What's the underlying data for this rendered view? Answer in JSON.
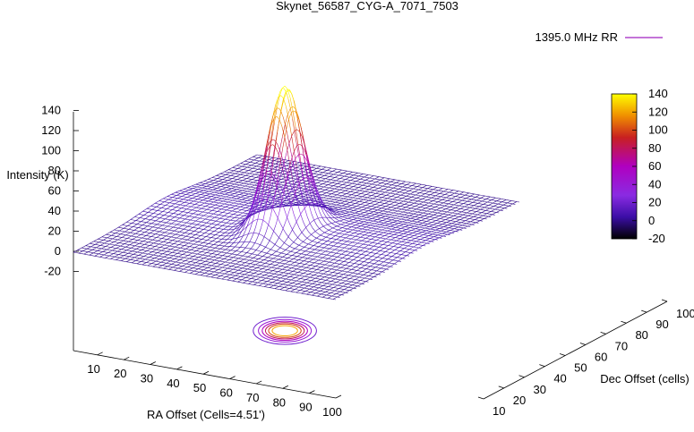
{
  "chart_data": {
    "type": "surface3d",
    "title": "Skynet_56587_CYG-A_7071_7503",
    "legend": {
      "label": "1395.0 MHz RR",
      "position": "top-right"
    },
    "xlabel": "RA Offset (Cells=4.51')",
    "ylabel": "Dec Offset (cells)",
    "zlabel": "Intensity (K)",
    "z_ticks": [
      "140",
      "120",
      "100",
      "80",
      "60",
      "40",
      "20",
      "0",
      "-20"
    ],
    "x_ticks": [
      "10",
      "20",
      "30",
      "40",
      "50",
      "60",
      "70",
      "80",
      "90",
      "100"
    ],
    "y_ticks": [
      "10",
      "20",
      "30",
      "40",
      "50",
      "60",
      "70",
      "80",
      "90",
      "100"
    ],
    "colorbar": {
      "ticks": [
        "140",
        "120",
        "100",
        "80",
        "60",
        "40",
        "20",
        "0",
        "-20"
      ],
      "range": [
        -20,
        140
      ],
      "colors": [
        "#000000",
        "#3b0ea6",
        "#8a2be2",
        "#b000c0",
        "#c82020",
        "#f09000",
        "#ffff00"
      ]
    },
    "xlim": [
      1,
      100
    ],
    "ylim": [
      10,
      100
    ],
    "zlim": [
      -20,
      140
    ],
    "peak": {
      "x": 50,
      "y": 50,
      "z": 140
    },
    "contour_levels": [
      20,
      40,
      60,
      80,
      100,
      120
    ],
    "line_color": "#7020ff",
    "grid": false
  }
}
